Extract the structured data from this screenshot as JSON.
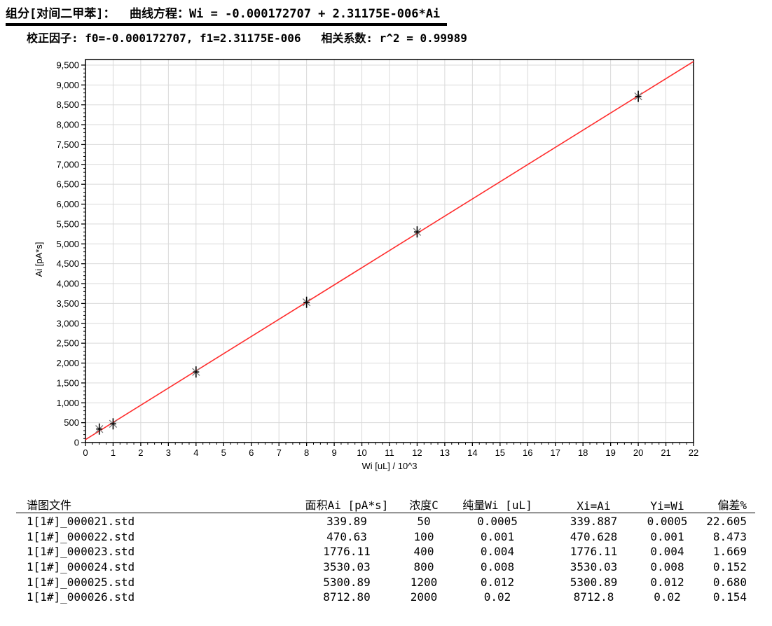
{
  "header": {
    "component_line": "组分[对间二甲苯]：  曲线方程：Wi = -0.000172707 + 2.31175E-006*Ai",
    "factors_line": "校正因子: f0=-0.000172707, f1=2.31175E-006   相关系数: r^2 = 0.99989"
  },
  "chart_data": {
    "type": "scatter",
    "title": "",
    "xlabel": "Wi [uL] / 10^3",
    "ylabel": "Ai [pA*s]",
    "x": [
      0.5,
      1,
      4,
      8,
      12,
      20
    ],
    "y": [
      339.887,
      470.628,
      1776.11,
      3530.03,
      5300.89,
      8712.8
    ],
    "fit_line": {
      "equation": "Wi = -0.000172707 + 2.31175E-006*Ai",
      "f0": -0.000172707,
      "f1": 2.31175e-06,
      "r2": 0.99989
    },
    "xlim": [
      0,
      22
    ],
    "ylim": [
      0,
      9640
    ],
    "x_major_step": 1,
    "x_minor_step": 0.25,
    "y_major_step": 500,
    "y_minor_step": 100,
    "y_label_max": 9500,
    "grid": "on",
    "legend": "none",
    "colors": {
      "fit_line": "#ff2d2d",
      "grid": "#d9d9d9",
      "axis": "#000000",
      "marker_main": "#000000",
      "marker_diag": "#7a7a7a"
    }
  },
  "table": {
    "columns": [
      "谱图文件",
      "面积Ai [pA*s]",
      "浓度C",
      "纯量Wi [uL]",
      "Xi=Ai",
      "Yi=Wi",
      "偏差%"
    ],
    "rows": [
      [
        "1[1#]_000021.std",
        "339.89",
        "50",
        "0.0005",
        "339.887",
        "0.0005",
        "22.605"
      ],
      [
        "1[1#]_000022.std",
        "470.63",
        "100",
        "0.001",
        "470.628",
        "0.001",
        "8.473"
      ],
      [
        "1[1#]_000023.std",
        "1776.11",
        "400",
        "0.004",
        "1776.11",
        "0.004",
        "1.669"
      ],
      [
        "1[1#]_000024.std",
        "3530.03",
        "800",
        "0.008",
        "3530.03",
        "0.008",
        "0.152"
      ],
      [
        "1[1#]_000025.std",
        "5300.89",
        "1200",
        "0.012",
        "5300.89",
        "0.012",
        "0.680"
      ],
      [
        "1[1#]_000026.std",
        "8712.80",
        "2000",
        "0.02",
        "8712.8",
        "0.02",
        "0.154"
      ]
    ]
  }
}
